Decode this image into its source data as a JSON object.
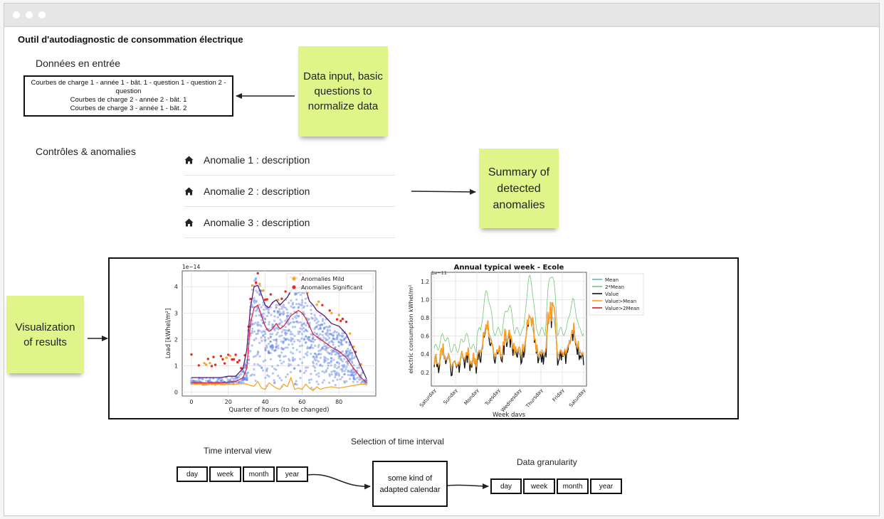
{
  "page": {
    "title": "Outil d'autodiagnostic de consommation électrique"
  },
  "inputs": {
    "heading": "Données en entrée",
    "lines": [
      "Courbes de charge 1    -     année 1 - bât. 1 - question 1 - question 2 - question",
      "Courbes de charge 2    -    année 2 - bât. 1",
      "Courbes de charge 3    -    année 1 - bât. 2"
    ],
    "sticky": "Data input, basic questions to normalize data"
  },
  "anomalies": {
    "heading": "Contrôles & anomalies",
    "items": [
      {
        "icon": "home-icon",
        "label": "Anomalie 1 : description"
      },
      {
        "icon": "home-icon",
        "label": "Anomalie 2 : description"
      },
      {
        "icon": "home-icon",
        "label": "Anomalie 3 : description"
      }
    ],
    "sticky": "Summary of detected anomalies"
  },
  "visualization": {
    "sticky": "Visualization of results"
  },
  "chart_data": [
    {
      "type": "scatter",
      "title": "",
      "xlabel": "Quarter of hours (to be changed)",
      "ylabel": "Load [kWhel/m²]",
      "y_scale_label": "1e−14",
      "xlim": [
        0,
        96
      ],
      "ylim": [
        0,
        4.6
      ],
      "xticks": [
        0,
        20,
        40,
        60,
        80
      ],
      "yticks": [
        0,
        1,
        2,
        3,
        4
      ],
      "grid": true,
      "legend": {
        "placement": "top-right",
        "entries": [
          "Anomalies Mild",
          "Anomalies Significant"
        ]
      },
      "series": [
        {
          "name": "Anomalies Mild",
          "color": "#f5a623"
        },
        {
          "name": "Anomalies Significant",
          "color": "#e8281e"
        }
      ],
      "lines": {
        "x": [
          0,
          4,
          8,
          12,
          16,
          20,
          24,
          28,
          30,
          32,
          34,
          36,
          38,
          40,
          42,
          44,
          46,
          48,
          50,
          52,
          54,
          56,
          58,
          60,
          62,
          64,
          66,
          68,
          70,
          72,
          76,
          80,
          84,
          88,
          92,
          95
        ],
        "upper": [
          0.55,
          0.55,
          0.55,
          0.55,
          0.55,
          0.6,
          0.6,
          0.9,
          1.6,
          3.2,
          4.0,
          4.05,
          3.7,
          3.3,
          3.2,
          3.4,
          3.5,
          3.3,
          3.45,
          3.6,
          3.85,
          3.95,
          3.95,
          4.0,
          3.9,
          3.45,
          3.3,
          3.1,
          3.0,
          2.9,
          2.6,
          2.5,
          2.2,
          1.6,
          0.95,
          0.5
        ],
        "mean": [
          0.35,
          0.35,
          0.35,
          0.35,
          0.35,
          0.38,
          0.4,
          0.55,
          0.9,
          2.6,
          3.2,
          3.3,
          2.9,
          2.5,
          2.3,
          2.4,
          2.6,
          2.4,
          2.5,
          2.7,
          2.9,
          3.0,
          3.1,
          3.0,
          2.8,
          2.5,
          2.2,
          2.1,
          2.0,
          1.9,
          1.7,
          1.55,
          1.3,
          0.9,
          0.55,
          0.35
        ],
        "lower": [
          0.3,
          0.3,
          0.3,
          0.3,
          0.3,
          0.3,
          0.3,
          0.32,
          0.3,
          0.25,
          0.22,
          0.4,
          0.15,
          0.1,
          0.35,
          0.25,
          0.15,
          0.1,
          0.3,
          0.2,
          0.55,
          0.1,
          0.15,
          0.1,
          0.3,
          0.15,
          0.05,
          0.2,
          0.1,
          0.15,
          0.2,
          0.15,
          0.2,
          0.25,
          0.3,
          0.3
        ]
      }
    },
    {
      "type": "line",
      "title": "Annual typical week - Ecole",
      "xlabel": "Week days",
      "ylabel": "electric consumption kWhel/m²",
      "y_scale_label": "1e−11",
      "ylim": [
        0.05,
        1.3
      ],
      "yticks": [
        0.2,
        0.4,
        0.6,
        0.8,
        1.0,
        1.2
      ],
      "categories": [
        "Saturday",
        "Sunday",
        "Monday",
        "Tuesday",
        "Wednesday",
        "Thursday",
        "Friday",
        "Saturday"
      ],
      "grid": true,
      "legend": {
        "placement": "right",
        "entries": [
          "Mean",
          "2*Mean",
          "Value",
          "Value>Mean",
          "Value>2Mean"
        ]
      },
      "series": [
        {
          "name": "Mean",
          "color": "#6baed6"
        },
        {
          "name": "2*Mean",
          "color": "#74c476"
        },
        {
          "name": "Value",
          "color": "#111111"
        },
        {
          "name": "Value>Mean",
          "color": "#ff9f1c"
        },
        {
          "name": "Value>2Mean",
          "color": "#e31a1c"
        }
      ]
    }
  ],
  "time_interval": {
    "label": "Time interval view",
    "options": [
      "day",
      "week",
      "month",
      "year"
    ]
  },
  "calendar": {
    "label": "Selection of time interval",
    "box": "some kind of adapted calendar"
  },
  "granularity": {
    "label": "Data granularity",
    "options": [
      "day",
      "week",
      "month",
      "year"
    ]
  }
}
